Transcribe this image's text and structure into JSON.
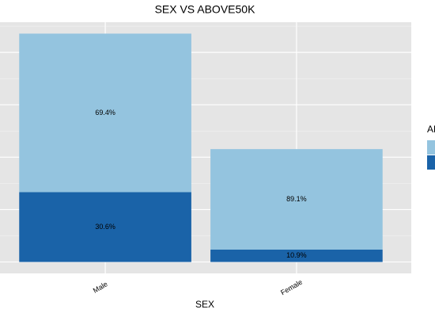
{
  "chart_data": {
    "type": "stacked_bar",
    "title": "SEX VS ABOVE50K",
    "xlabel": "SEX",
    "legend_title": "AB",
    "categories": [
      "Male",
      "Female"
    ],
    "series": [
      {
        "color": "#1a63a8",
        "values": [
          6662,
          1179
        ],
        "shares": [
          {
            "value": 30.6,
            "label": "30.6%"
          },
          {
            "value": 10.9,
            "label": "10.9%"
          }
        ]
      },
      {
        "color": "#94c4df",
        "values": [
          15128,
          9592
        ],
        "shares": [
          {
            "value": 69.4,
            "label": "69.4%"
          },
          {
            "value": 89.1,
            "label": "89.1%"
          }
        ]
      }
    ],
    "ylim": [
      -1090,
      22880
    ],
    "yticks": [
      0,
      5000,
      10000,
      15000,
      20000
    ],
    "yminor": [
      2500,
      7500,
      12500,
      17500,
      22500
    ],
    "grid": true
  }
}
